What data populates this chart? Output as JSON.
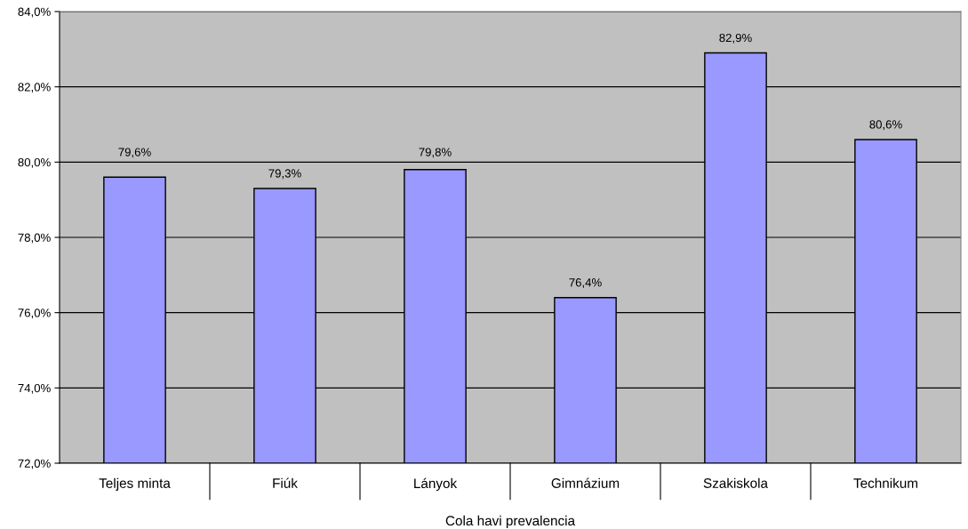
{
  "chart_data": {
    "type": "bar",
    "categories": [
      "Teljes minta",
      "Fiúk",
      "Lányok",
      "Gimnázium",
      "Szakiskola",
      "Technikum"
    ],
    "values": [
      79.6,
      79.3,
      79.8,
      76.4,
      82.9,
      80.6
    ],
    "value_labels": [
      "79,6%",
      "79,3%",
      "79,8%",
      "76,4%",
      "82,9%",
      "80,6%"
    ],
    "color": "#9999ff",
    "xlabel": "Cola havi prevalencia",
    "ylim": [
      72,
      84
    ],
    "yticks": [
      {
        "value": 72,
        "label": "72,0%"
      },
      {
        "value": 74,
        "label": "74,0%"
      },
      {
        "value": 76,
        "label": "76,0%"
      },
      {
        "value": 78,
        "label": "78,0%"
      },
      {
        "value": 80,
        "label": "80,0%"
      },
      {
        "value": 82,
        "label": "82,0%"
      },
      {
        "value": 84,
        "label": "84,0%"
      }
    ],
    "grid": "y",
    "legend": false
  }
}
